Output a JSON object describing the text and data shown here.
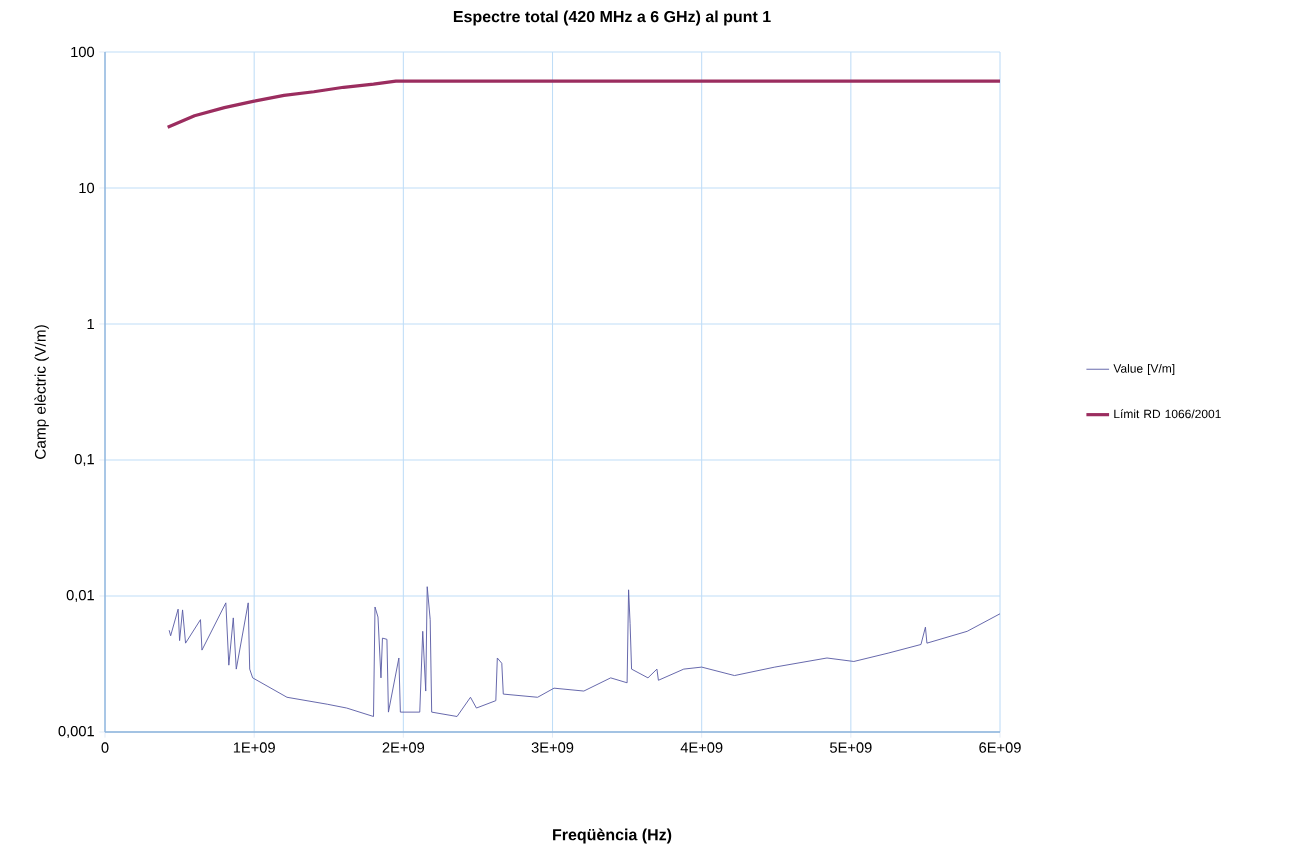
{
  "chart_data": {
    "type": "line",
    "title": "Espectre total (420 MHz a 6 GHz) al punt 1",
    "xlabel": "Freqüència (Hz)",
    "ylabel": "Camp elèctric (V/m)",
    "xlim": [
      0,
      6000000000
    ],
    "xticks": [
      0,
      {
        "value": 1000000000,
        "label": "1E+09"
      },
      {
        "value": 2000000000,
        "label": "2E+09"
      },
      {
        "value": 3000000000,
        "label": "3E+09"
      },
      {
        "value": 4000000000,
        "label": "4E+09"
      },
      {
        "value": 5000000000,
        "label": "5E+09"
      },
      {
        "value": 6000000000,
        "label": "6E+09"
      }
    ],
    "ylim": [
      0.001,
      100
    ],
    "yticks": [
      {
        "value": 0.001,
        "label": "0,001"
      },
      {
        "value": 0.01,
        "label": "0,01"
      },
      {
        "value": 0.1,
        "label": "0,1"
      },
      1,
      10,
      100
    ],
    "log": "y",
    "grid": true,
    "legend": "right",
    "series": [
      {
        "name": "Value [V/m]",
        "color": "#5b5ea6",
        "x": [
          430000000.0,
          440000000.0,
          490000000.0,
          500000000.0,
          520000000.0,
          540000000.0,
          640000000.0,
          650000000.0,
          810000000.0,
          830000000.0,
          860000000.0,
          880000000.0,
          960000000.0,
          970000000.0,
          990000000.0,
          1220000000.0,
          1490000000.0,
          1620000000.0,
          1800000000.0,
          1810000000.0,
          1830000000.0,
          1850000000.0,
          1860000000.0,
          1890000000.0,
          1900000000.0,
          1970000000.0,
          1980000000.0,
          2110000000.0,
          2130000000.0,
          2150000000.0,
          2160000000.0,
          2180000000.0,
          2190000000.0,
          2360000000.0,
          2450000000.0,
          2490000000.0,
          2620000000.0,
          2630000000.0,
          2660000000.0,
          2670000000.0,
          2900000000.0,
          3010000000.0,
          3210000000.0,
          3390000000.0,
          3500000000.0,
          3510000000.0,
          3520000000.0,
          3530000000.0,
          3640000000.0,
          3700000000.0,
          3710000000.0,
          3880000000.0,
          4000000000.0,
          4220000000.0,
          4490000000.0,
          4840000000.0,
          5020000000.0,
          5250000000.0,
          5470000000.0,
          5500000000.0,
          5510000000.0,
          5780000000.0,
          6000000000.0
        ],
        "values": [
          0.0056,
          0.0051,
          0.008,
          0.0047,
          0.0079,
          0.0045,
          0.0067,
          0.004,
          0.0089,
          0.0031,
          0.0069,
          0.0029,
          0.0089,
          0.0029,
          0.0025,
          0.0018,
          0.0016,
          0.0015,
          0.0013,
          0.0083,
          0.007,
          0.0025,
          0.0049,
          0.0048,
          0.0014,
          0.0035,
          0.0014,
          0.0014,
          0.0055,
          0.002,
          0.0117,
          0.0067,
          0.0014,
          0.0013,
          0.0018,
          0.0015,
          0.0017,
          0.0035,
          0.0032,
          0.0019,
          0.0018,
          0.0021,
          0.002,
          0.0025,
          0.0023,
          0.0111,
          0.0063,
          0.0029,
          0.0025,
          0.0029,
          0.0024,
          0.0029,
          0.003,
          0.0026,
          0.003,
          0.0035,
          0.0033,
          0.0038,
          0.0044,
          0.0059,
          0.0045,
          0.0055,
          0.0074
        ]
      },
      {
        "name": "Límit RD 1066/2001",
        "color": "#9b2d5f",
        "x": [
          420000000.0,
          600000000.0,
          800000000.0,
          1000000000.0,
          1200000000.0,
          1400000000.0,
          1600000000.0,
          1800000000.0,
          1950000000.0,
          6000000000.0
        ],
        "values": [
          28,
          34,
          39,
          43.5,
          48,
          51,
          55,
          58,
          61,
          61
        ]
      }
    ]
  }
}
